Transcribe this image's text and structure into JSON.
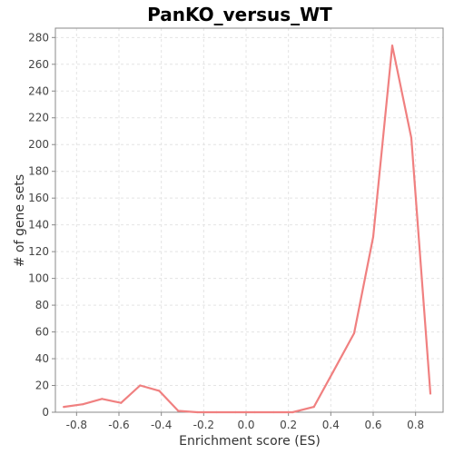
{
  "chart_data": {
    "type": "line",
    "title": "PanKO_versus_WT",
    "xlabel": "Enrichment score (ES)",
    "ylabel": "# of gene sets",
    "xlim": [
      -0.9,
      0.93
    ],
    "ylim": [
      0,
      287
    ],
    "xticks": [
      -0.8,
      -0.6,
      -0.4,
      -0.2,
      0.0,
      0.2,
      0.4,
      0.6,
      0.8
    ],
    "xtick_labels": [
      "-0.8",
      "-0.6",
      "-0.4",
      "-0.2",
      "0.0",
      "0.2",
      "0.4",
      "0.6",
      "0.8"
    ],
    "yticks": [
      0,
      20,
      40,
      60,
      80,
      100,
      120,
      140,
      160,
      180,
      200,
      220,
      240,
      260,
      280
    ],
    "ytick_labels": [
      "0",
      "20",
      "40",
      "60",
      "80",
      "100",
      "120",
      "140",
      "160",
      "180",
      "200",
      "220",
      "240",
      "260",
      "280"
    ],
    "grid": true,
    "series": [
      {
        "color": "#f08080",
        "x": [
          -0.86,
          -0.77,
          -0.68,
          -0.59,
          -0.5,
          -0.41,
          -0.32,
          -0.23,
          -0.14,
          -0.05,
          0.04,
          0.13,
          0.22,
          0.32,
          0.41,
          0.51,
          0.6,
          0.69,
          0.78,
          0.87
        ],
        "y": [
          4,
          6,
          10,
          7,
          20,
          16,
          1,
          0,
          0,
          0,
          0,
          0,
          0,
          4,
          30,
          59,
          131,
          274,
          205,
          14
        ]
      }
    ]
  }
}
